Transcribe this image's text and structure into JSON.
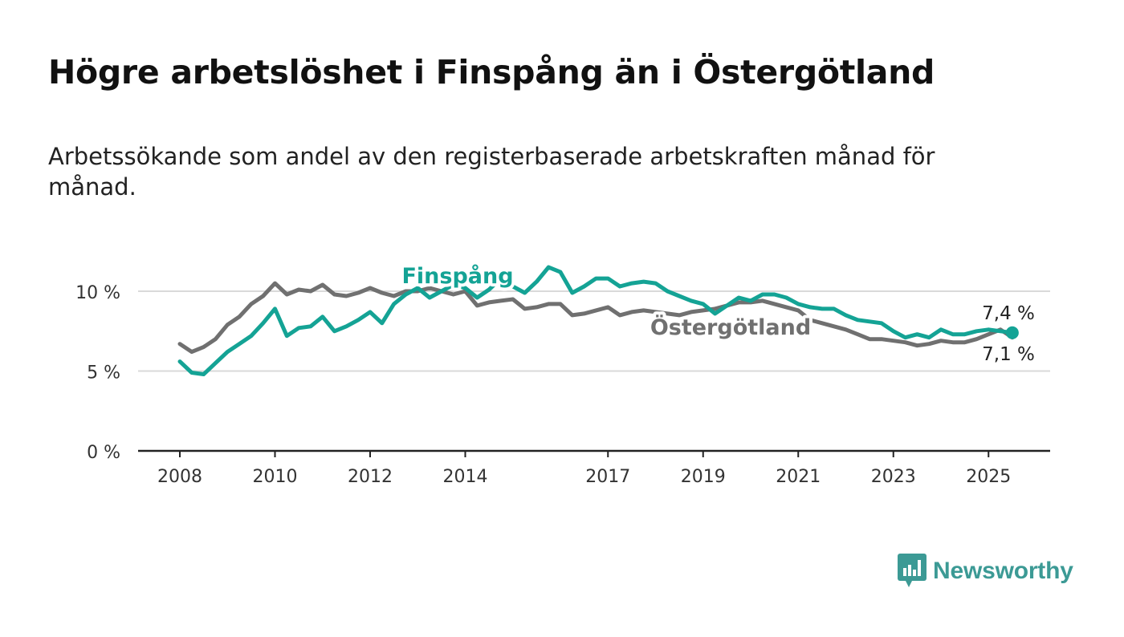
{
  "header": {
    "title": "Högre arbetslöshet i Finspång än i Östergötland",
    "subtitle": "Arbetssökande som andel av den registerbaserade arbetskraften månad för månad."
  },
  "brand": {
    "name": "Newsworthy",
    "icon": "newsworthy-logo-icon",
    "color": "#3c9a95"
  },
  "chart_data": {
    "type": "line",
    "title": "Högre arbetslöshet i Finspång än i Östergötland",
    "subtitle": "Arbetssökande som andel av den registerbaserade arbetskraften månad för månad.",
    "xlabel": "",
    "ylabel": "",
    "ylim": [
      0,
      12
    ],
    "y_ticks": [
      0,
      5,
      10
    ],
    "y_tick_labels": [
      "0 %",
      "5 %",
      "10 %"
    ],
    "x_ticks": [
      2008,
      2010,
      2012,
      2014,
      2017,
      2019,
      2021,
      2023,
      2025
    ],
    "x_tick_labels": [
      "2008",
      "2010",
      "2012",
      "2014",
      "2017",
      "2019",
      "2021",
      "2023",
      "2025"
    ],
    "grid": true,
    "legend": "inline labels",
    "series": [
      {
        "name": "Östergötland",
        "color": "#707070",
        "end_label": "7,1 %",
        "x": [
          2008.0,
          2008.25,
          2008.5,
          2008.75,
          2009.0,
          2009.25,
          2009.5,
          2009.75,
          2010.0,
          2010.25,
          2010.5,
          2010.75,
          2011.0,
          2011.25,
          2011.5,
          2011.75,
          2012.0,
          2012.25,
          2012.5,
          2012.75,
          2013.0,
          2013.25,
          2013.5,
          2013.75,
          2014.0,
          2014.25,
          2014.5,
          2014.75,
          2015.0,
          2015.25,
          2015.5,
          2015.75,
          2016.0,
          2016.25,
          2016.5,
          2016.75,
          2017.0,
          2017.25,
          2017.5,
          2017.75,
          2018.0,
          2018.25,
          2018.5,
          2018.75,
          2019.0,
          2019.25,
          2019.5,
          2019.75,
          2020.0,
          2020.25,
          2020.5,
          2020.75,
          2021.0,
          2021.25,
          2021.5,
          2021.75,
          2022.0,
          2022.25,
          2022.5,
          2022.75,
          2023.0,
          2023.25,
          2023.5,
          2023.75,
          2024.0,
          2024.25,
          2024.5,
          2024.75,
          2025.0,
          2025.25,
          2025.5
        ],
        "y": [
          6.7,
          6.2,
          6.5,
          7.0,
          7.9,
          8.4,
          9.2,
          9.7,
          10.5,
          9.8,
          10.1,
          10.0,
          10.4,
          9.8,
          9.7,
          9.9,
          10.2,
          9.9,
          9.7,
          10.0,
          10.0,
          10.2,
          10.0,
          9.8,
          10.0,
          9.1,
          9.3,
          9.4,
          9.5,
          8.9,
          9.0,
          9.2,
          9.2,
          8.5,
          8.6,
          8.8,
          9.0,
          8.5,
          8.7,
          8.8,
          8.7,
          8.6,
          8.5,
          8.7,
          8.8,
          8.9,
          9.1,
          9.3,
          9.3,
          9.4,
          9.2,
          9.0,
          8.8,
          8.2,
          8.0,
          7.8,
          7.6,
          7.3,
          7.0,
          7.0,
          6.9,
          6.8,
          6.6,
          6.7,
          6.9,
          6.8,
          6.8,
          7.0,
          7.3,
          7.6,
          7.1
        ]
      },
      {
        "name": "Finspång",
        "color": "#14a395",
        "end_label": "7,4 %",
        "x": [
          2008.0,
          2008.25,
          2008.5,
          2008.75,
          2009.0,
          2009.25,
          2009.5,
          2009.75,
          2010.0,
          2010.25,
          2010.5,
          2010.75,
          2011.0,
          2011.25,
          2011.5,
          2011.75,
          2012.0,
          2012.25,
          2012.5,
          2012.75,
          2013.0,
          2013.25,
          2013.5,
          2013.75,
          2014.0,
          2014.25,
          2014.5,
          2014.75,
          2015.0,
          2015.25,
          2015.5,
          2015.75,
          2016.0,
          2016.25,
          2016.5,
          2016.75,
          2017.0,
          2017.25,
          2017.5,
          2017.75,
          2018.0,
          2018.25,
          2018.5,
          2018.75,
          2019.0,
          2019.25,
          2019.5,
          2019.75,
          2020.0,
          2020.25,
          2020.5,
          2020.75,
          2021.0,
          2021.25,
          2021.5,
          2021.75,
          2022.0,
          2022.25,
          2022.5,
          2022.75,
          2023.0,
          2023.25,
          2023.5,
          2023.75,
          2024.0,
          2024.25,
          2024.5,
          2024.75,
          2025.0,
          2025.25,
          2025.5
        ],
        "y": [
          5.6,
          4.9,
          4.8,
          5.5,
          6.2,
          6.7,
          7.2,
          8.0,
          8.9,
          7.2,
          7.7,
          7.8,
          8.4,
          7.5,
          7.8,
          8.2,
          8.7,
          8.0,
          9.2,
          9.8,
          10.2,
          9.6,
          10.0,
          10.4,
          10.2,
          9.6,
          10.1,
          10.8,
          10.3,
          9.9,
          10.6,
          11.5,
          11.2,
          9.9,
          10.3,
          10.8,
          10.8,
          10.3,
          10.5,
          10.6,
          10.5,
          10.0,
          9.7,
          9.4,
          9.2,
          8.6,
          9.1,
          9.6,
          9.4,
          9.8,
          9.8,
          9.6,
          9.2,
          9.0,
          8.9,
          8.9,
          8.5,
          8.2,
          8.1,
          8.0,
          7.5,
          7.1,
          7.3,
          7.1,
          7.6,
          7.3,
          7.3,
          7.5,
          7.6,
          7.5,
          7.4
        ]
      }
    ]
  }
}
